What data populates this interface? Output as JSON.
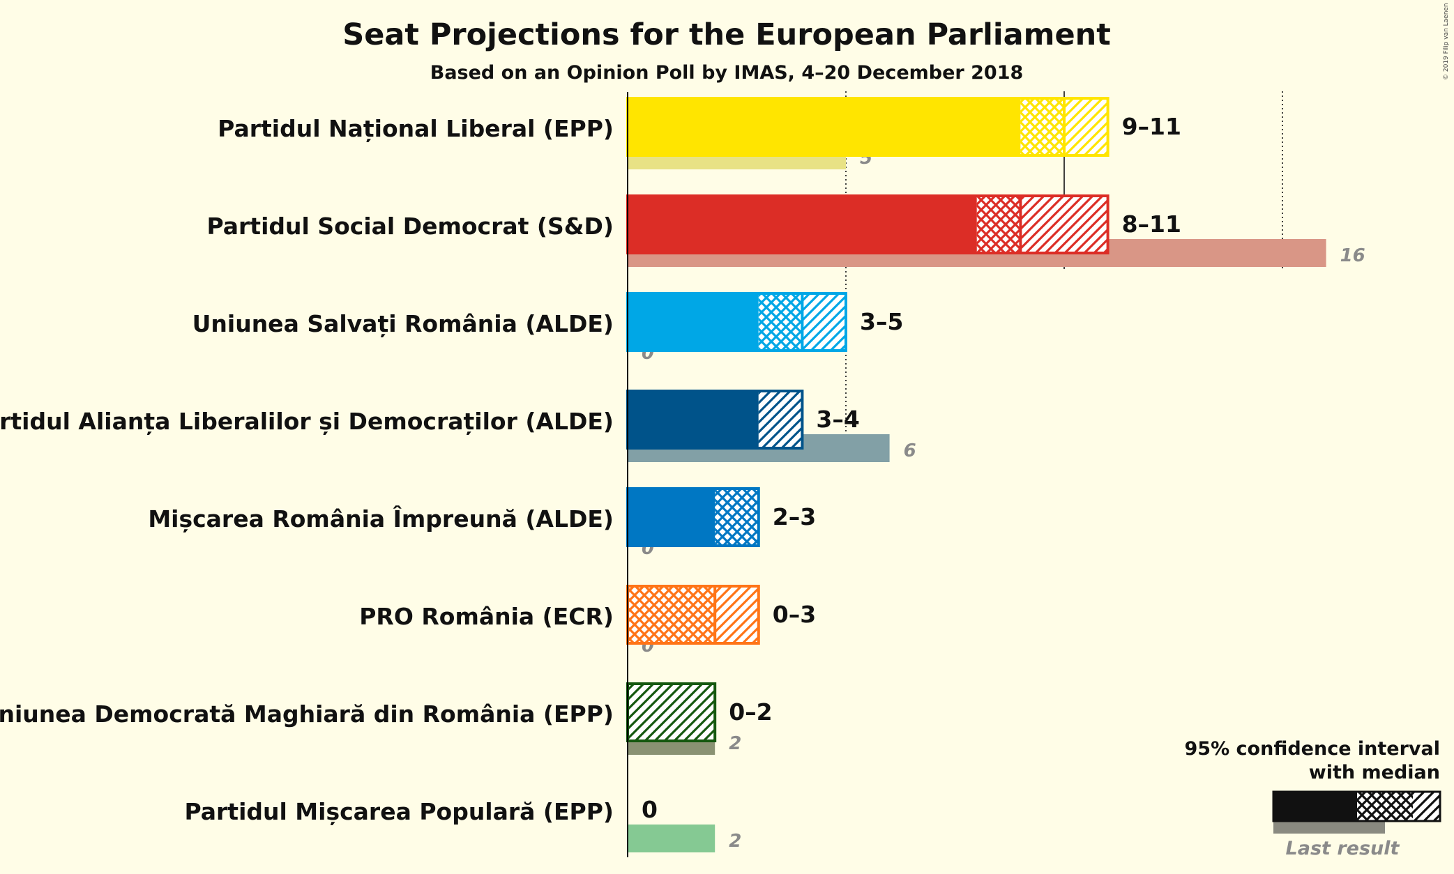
{
  "chart_data": {
    "type": "bar",
    "title": "Seat Projections for the European Parliament",
    "subtitle": "Based on an Opinion Poll by IMAS, 4–20 December 2018",
    "copyright": "© 2019 Filip van Laenen",
    "majority_lines": [
      5,
      10,
      15
    ],
    "parties": [
      {
        "name": "Partidul Național Liberal (EPP)",
        "low": 9,
        "median": 10,
        "high": 11,
        "range_label": "9–11",
        "last": 5,
        "last_label": "5",
        "color": "#FFE500",
        "last_color": "#E8E285"
      },
      {
        "name": "Partidul Social Democrat (S&D)",
        "low": 8,
        "median": 9,
        "high": 11,
        "range_label": "8–11",
        "last": 16,
        "last_label": "16",
        "color": "#DC2D26",
        "last_color": "#D99686"
      },
      {
        "name": "Uniunea Salvați România (ALDE)",
        "low": 3,
        "median": 4,
        "high": 5,
        "range_label": "3–5",
        "last": 0,
        "last_label": "0",
        "color": "#00A7E6",
        "last_color": "#8FCDE8"
      },
      {
        "name": "Partidul Alianța Liberalilor și Democraților (ALDE)",
        "low": 3,
        "median": 3,
        "high": 4,
        "range_label": "3–4",
        "last": 6,
        "last_label": "6",
        "color": "#00538A",
        "last_color": "#82A0A6"
      },
      {
        "name": "Mișcarea România Împreună (ALDE)",
        "low": 2,
        "median": 3,
        "high": 3,
        "range_label": "2–3",
        "last": 0,
        "last_label": "0",
        "color": "#0077C3",
        "last_color": "#8FB8D8"
      },
      {
        "name": "PRO România (ECR)",
        "low": 0,
        "median": 2,
        "high": 3,
        "range_label": "0–3",
        "last": 0,
        "last_label": "0",
        "color": "#FF7417",
        "last_color": "#F5B98A"
      },
      {
        "name": "Uniunea Democrată Maghiară din România (EPP)",
        "low": 0,
        "median": 0,
        "high": 2,
        "range_label": "0–2",
        "last": 2,
        "last_label": "2",
        "color": "#15580F",
        "last_color": "#8A9273"
      },
      {
        "name": "Partidul Mișcarea Populară (EPP)",
        "low": 0,
        "median": 0,
        "high": 0,
        "range_label": "0",
        "last": 2,
        "last_label": "2",
        "color": "#1A9A3C",
        "last_color": "#85C993"
      }
    ],
    "legend": {
      "line1": "95% confidence interval",
      "line2": "with median",
      "last_result": "Last result"
    }
  }
}
